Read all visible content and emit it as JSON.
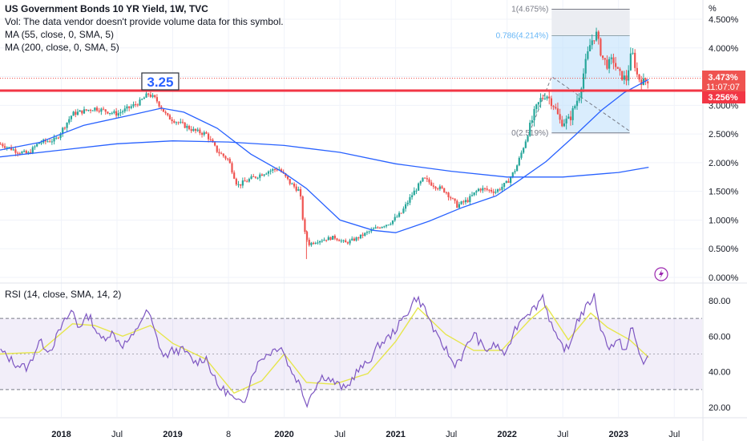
{
  "header": {
    "symbol_line": "US Government Bonds 10 YR Yield, 1W, TVC",
    "vol_line": "Vol: The data vendor doesn't provide volume data for this symbol.",
    "ma1_line": "MA (55, close, 0, SMA, 5)",
    "ma2_line": "MA (200, close, 0, SMA, 5)",
    "rsi_line": "RSI (14, close, SMA, 14, 2)"
  },
  "colors": {
    "up": "#26a69a",
    "down": "#ef5350",
    "ma": "#2962ff",
    "rsi": "#7e57c2",
    "rsi_ma": "#e6e64d",
    "hline": "#f23645",
    "fib_fill": "#bbdefb",
    "fib_grey": "#d1d4dc",
    "fib_text": "#64b5f6"
  },
  "chart_data": [
    {
      "type": "candlestick",
      "title": "US Government Bonds 10 YR Yield, 1W, TVC",
      "x_ticks": [
        "2018",
        "Jul",
        "2019",
        "8",
        "2020",
        "Jul",
        "2021",
        "Jul",
        "2022",
        "Jul",
        "2023",
        "Jul"
      ],
      "x_tick_dates": [
        2018.0,
        2018.5,
        2019.0,
        2019.5,
        2020.0,
        2020.5,
        2021.0,
        2021.5,
        2022.0,
        2022.5,
        2023.0,
        2023.5
      ],
      "x_range": [
        2017.45,
        2023.75
      ],
      "y_unit": "%",
      "y_ticks": [
        "4.500%",
        "4.000%",
        "3.500%",
        "3.000%",
        "2.500%",
        "2.000%",
        "1.500%",
        "1.000%",
        "0.500%",
        "0.000%"
      ],
      "y_range": [
        0.0,
        4.7
      ],
      "price_key_points": [
        [
          2017.45,
          2.33
        ],
        [
          2017.6,
          2.2
        ],
        [
          2017.7,
          2.15
        ],
        [
          2017.8,
          2.35
        ],
        [
          2017.95,
          2.4
        ],
        [
          2018.1,
          2.85
        ],
        [
          2018.3,
          2.95
        ],
        [
          2018.5,
          2.85
        ],
        [
          2018.7,
          3.05
        ],
        [
          2018.78,
          3.2
        ],
        [
          2018.85,
          3.1
        ],
        [
          2018.95,
          2.8
        ],
        [
          2019.05,
          2.7
        ],
        [
          2019.2,
          2.55
        ],
        [
          2019.3,
          2.5
        ],
        [
          2019.4,
          2.2
        ],
        [
          2019.5,
          2.05
        ],
        [
          2019.58,
          1.6
        ],
        [
          2019.7,
          1.72
        ],
        [
          2019.85,
          1.85
        ],
        [
          2019.95,
          1.9
        ],
        [
          2020.05,
          1.65
        ],
        [
          2020.14,
          1.5
        ],
        [
          2020.18,
          0.8
        ],
        [
          2020.22,
          0.58
        ],
        [
          2020.3,
          0.64
        ],
        [
          2020.45,
          0.7
        ],
        [
          2020.55,
          0.6
        ],
        [
          2020.65,
          0.68
        ],
        [
          2020.8,
          0.84
        ],
        [
          2020.95,
          0.95
        ],
        [
          2021.05,
          1.12
        ],
        [
          2021.15,
          1.45
        ],
        [
          2021.25,
          1.72
        ],
        [
          2021.35,
          1.6
        ],
        [
          2021.45,
          1.5
        ],
        [
          2021.55,
          1.25
        ],
        [
          2021.65,
          1.35
        ],
        [
          2021.75,
          1.55
        ],
        [
          2021.9,
          1.5
        ],
        [
          2022.0,
          1.65
        ],
        [
          2022.08,
          1.9
        ],
        [
          2022.16,
          2.35
        ],
        [
          2022.25,
          2.9
        ],
        [
          2022.3,
          3.1
        ],
        [
          2022.35,
          3.2
        ],
        [
          2022.42,
          3.0
        ],
        [
          2022.48,
          2.7
        ],
        [
          2022.56,
          2.75
        ],
        [
          2022.65,
          3.2
        ],
        [
          2022.7,
          3.7
        ],
        [
          2022.75,
          4.1
        ],
        [
          2022.8,
          4.25
        ],
        [
          2022.85,
          3.85
        ],
        [
          2022.9,
          3.7
        ],
        [
          2022.95,
          3.8
        ],
        [
          2023.0,
          3.55
        ],
        [
          2023.07,
          3.45
        ],
        [
          2023.12,
          3.95
        ],
        [
          2023.17,
          3.5
        ],
        [
          2023.22,
          3.4
        ],
        [
          2023.27,
          3.45
        ]
      ],
      "last_price": "3.473%",
      "countdown": "11:07:07",
      "support_level": 3.256,
      "support_label": "3.256%",
      "callout_label": "3.25",
      "callout_date": 2018.78,
      "ma55": [
        [
          2017.45,
          2.22
        ],
        [
          2017.8,
          2.35
        ],
        [
          2018.2,
          2.65
        ],
        [
          2018.6,
          2.82
        ],
        [
          2018.9,
          2.95
        ],
        [
          2019.1,
          2.88
        ],
        [
          2019.4,
          2.6
        ],
        [
          2019.7,
          2.15
        ],
        [
          2020.0,
          1.82
        ],
        [
          2020.2,
          1.55
        ],
        [
          2020.5,
          1.0
        ],
        [
          2020.8,
          0.82
        ],
        [
          2021.0,
          0.78
        ],
        [
          2021.3,
          0.98
        ],
        [
          2021.6,
          1.22
        ],
        [
          2021.9,
          1.42
        ],
        [
          2022.1,
          1.68
        ],
        [
          2022.35,
          2.02
        ],
        [
          2022.6,
          2.46
        ],
        [
          2022.85,
          2.92
        ],
        [
          2023.05,
          3.22
        ],
        [
          2023.27,
          3.45
        ]
      ],
      "ma200": [
        [
          2017.45,
          2.1
        ],
        [
          2018.0,
          2.22
        ],
        [
          2018.5,
          2.33
        ],
        [
          2019.0,
          2.38
        ],
        [
          2019.5,
          2.36
        ],
        [
          2020.0,
          2.3
        ],
        [
          2020.5,
          2.18
        ],
        [
          2021.0,
          1.98
        ],
        [
          2021.5,
          1.85
        ],
        [
          2022.0,
          1.75
        ],
        [
          2022.5,
          1.75
        ],
        [
          2023.0,
          1.83
        ],
        [
          2023.27,
          1.92
        ]
      ],
      "fibonacci": {
        "levels": [
          {
            "label": "1(4.675%)",
            "ratio": 1,
            "value": 4.675
          },
          {
            "label": "0.786(4.214%)",
            "ratio": 0.786,
            "value": 4.214
          },
          {
            "label": "0(2.519%)",
            "ratio": 0,
            "value": 2.519
          }
        ],
        "start_date": 2022.4,
        "end_date": 2023.1,
        "trend_points": [
          [
            2022.2,
            2.52
          ],
          [
            2022.4,
            3.5
          ],
          [
            2023.1,
            2.55
          ]
        ]
      }
    },
    {
      "type": "line",
      "title": "RSI (14, close, SMA, 14, 2)",
      "y_ticks": [
        "80.00",
        "60.00",
        "40.00",
        "20.00"
      ],
      "y_range": [
        12,
        88
      ],
      "band": [
        30,
        70
      ],
      "midline": 50,
      "rsi_key_points": [
        [
          2017.45,
          52
        ],
        [
          2017.6,
          44
        ],
        [
          2017.7,
          42
        ],
        [
          2017.8,
          57
        ],
        [
          2017.9,
          52
        ],
        [
          2018.0,
          65
        ],
        [
          2018.05,
          70
        ],
        [
          2018.1,
          75
        ],
        [
          2018.15,
          65
        ],
        [
          2018.25,
          72
        ],
        [
          2018.35,
          58
        ],
        [
          2018.45,
          62
        ],
        [
          2018.55,
          55
        ],
        [
          2018.65,
          60
        ],
        [
          2018.72,
          70
        ],
        [
          2018.78,
          74
        ],
        [
          2018.85,
          60
        ],
        [
          2018.92,
          48
        ],
        [
          2019.0,
          52
        ],
        [
          2019.1,
          52
        ],
        [
          2019.2,
          45
        ],
        [
          2019.3,
          48
        ],
        [
          2019.4,
          32
        ],
        [
          2019.5,
          28
        ],
        [
          2019.58,
          22
        ],
        [
          2019.65,
          25
        ],
        [
          2019.72,
          40
        ],
        [
          2019.8,
          48
        ],
        [
          2019.9,
          52
        ],
        [
          2019.97,
          55
        ],
        [
          2020.05,
          42
        ],
        [
          2020.14,
          33
        ],
        [
          2020.2,
          22
        ],
        [
          2020.27,
          31
        ],
        [
          2020.35,
          38
        ],
        [
          2020.45,
          34
        ],
        [
          2020.55,
          30
        ],
        [
          2020.65,
          40
        ],
        [
          2020.75,
          45
        ],
        [
          2020.85,
          55
        ],
        [
          2020.95,
          60
        ],
        [
          2021.05,
          68
        ],
        [
          2021.12,
          75
        ],
        [
          2021.18,
          82
        ],
        [
          2021.25,
          77
        ],
        [
          2021.3,
          70
        ],
        [
          2021.38,
          58
        ],
        [
          2021.45,
          53
        ],
        [
          2021.52,
          44
        ],
        [
          2021.6,
          49
        ],
        [
          2021.7,
          62
        ],
        [
          2021.8,
          52
        ],
        [
          2021.9,
          55
        ],
        [
          2022.0,
          49
        ],
        [
          2022.05,
          62
        ],
        [
          2022.15,
          72
        ],
        [
          2022.25,
          76
        ],
        [
          2022.32,
          83
        ],
        [
          2022.38,
          70
        ],
        [
          2022.45,
          57
        ],
        [
          2022.55,
          52
        ],
        [
          2022.62,
          68
        ],
        [
          2022.7,
          75
        ],
        [
          2022.78,
          83
        ],
        [
          2022.85,
          62
        ],
        [
          2022.92,
          54
        ],
        [
          2023.0,
          57
        ],
        [
          2023.07,
          52
        ],
        [
          2023.12,
          66
        ],
        [
          2023.18,
          51
        ],
        [
          2023.23,
          45
        ],
        [
          2023.27,
          49
        ]
      ],
      "rsi_ma_key_points": [
        [
          2017.45,
          50
        ],
        [
          2017.8,
          51
        ],
        [
          2018.1,
          67
        ],
        [
          2018.3,
          66
        ],
        [
          2018.55,
          60
        ],
        [
          2018.8,
          66
        ],
        [
          2019.0,
          56
        ],
        [
          2019.3,
          47
        ],
        [
          2019.55,
          28
        ],
        [
          2019.8,
          35
        ],
        [
          2020.0,
          50
        ],
        [
          2020.2,
          34
        ],
        [
          2020.45,
          33
        ],
        [
          2020.75,
          39
        ],
        [
          2021.0,
          57
        ],
        [
          2021.2,
          76
        ],
        [
          2021.45,
          61
        ],
        [
          2021.7,
          52
        ],
        [
          2021.95,
          52
        ],
        [
          2022.2,
          69
        ],
        [
          2022.35,
          77
        ],
        [
          2022.55,
          58
        ],
        [
          2022.75,
          73
        ],
        [
          2022.9,
          65
        ],
        [
          2023.1,
          58
        ],
        [
          2023.27,
          48
        ]
      ]
    }
  ]
}
